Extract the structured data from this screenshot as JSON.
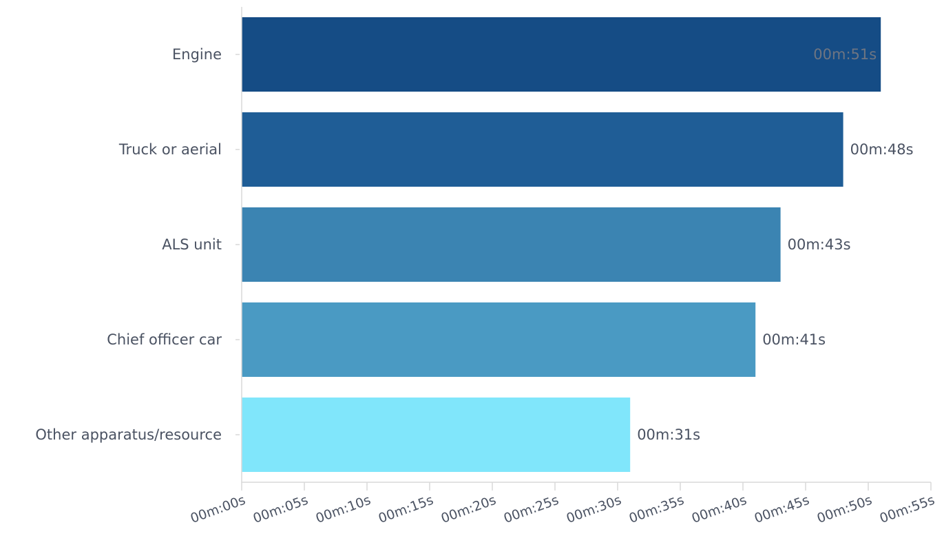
{
  "chart_data": {
    "type": "bar",
    "orientation": "horizontal",
    "categories": [
      "Engine",
      "Truck or aerial",
      "ALS unit",
      "Chief officer car",
      "Other apparatus/resource"
    ],
    "values": [
      51,
      48,
      43,
      41,
      31
    ],
    "value_labels": [
      "00m:51s",
      "00m:48s",
      "00m:43s",
      "00m:41s",
      "00m:31s"
    ],
    "value_unit": "seconds",
    "bar_colors": [
      "#154c85",
      "#1f5d96",
      "#3b84b2",
      "#4a9ac3",
      "#80e6fb"
    ],
    "inside_label_color": "#6e7582",
    "xlim": [
      0,
      55
    ],
    "x_ticks": [
      0,
      5,
      10,
      15,
      20,
      25,
      30,
      35,
      40,
      45,
      50,
      55
    ],
    "x_tick_labels": [
      "00m:00s",
      "00m:05s",
      "00m:10s",
      "00m:15s",
      "00m:20s",
      "00m:25s",
      "00m:30s",
      "00m:35s",
      "00m:40s",
      "00m:45s",
      "00m:50s",
      "00m:55s"
    ],
    "title": "",
    "xlabel": "",
    "ylabel": "",
    "grid": false,
    "legend": "none"
  }
}
